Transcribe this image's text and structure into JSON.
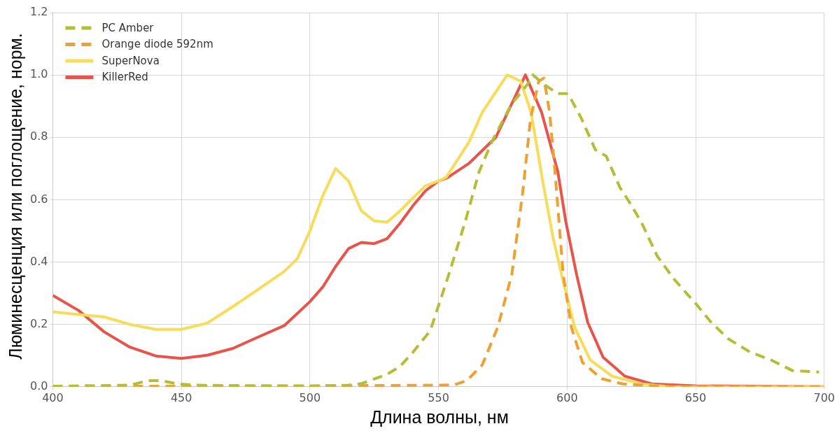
{
  "chart_data": {
    "type": "line",
    "xlabel": "Длина волны, нм",
    "ylabel": "Люминесценция или поглощение, норм.",
    "xlim": [
      400,
      700
    ],
    "xticks": [
      400,
      450,
      500,
      550,
      600,
      650,
      700
    ],
    "ylim": [
      0,
      1.2
    ],
    "yticks": [
      {
        "value": 0,
        "label": "0.0"
      },
      {
        "value": 0.2,
        "label": "0.2"
      },
      {
        "value": 0.4,
        "label": "0.4"
      },
      {
        "value": 0.6,
        "label": "0.6"
      },
      {
        "value": 0.8,
        "label": "0.8"
      },
      {
        "value": 1,
        "label": "1.0"
      },
      {
        "value": 1.2,
        "label": "1.2"
      }
    ],
    "grid": true,
    "legend": "top left",
    "marker": "none",
    "series": [
      {
        "name": "PC Amber",
        "color": "#b5bd34",
        "line_style": "dashed",
        "x": [
          400,
          430,
          437,
          442,
          448,
          455,
          500,
          515,
          520,
          525,
          530,
          535,
          540,
          546.8,
          554,
          560.4,
          565.8,
          571,
          578.3,
          584.6,
          586.7,
          591,
          596.4,
          600.4,
          605.6,
          611,
          615.2,
          620.5,
          624.7,
          629,
          635,
          641.6,
          650,
          656,
          662.5,
          671,
          679.3,
          687.6,
          698
        ],
        "values": [
          0.002,
          0.005,
          0.02,
          0.02,
          0.01,
          0.005,
          0.002,
          0.005,
          0.01,
          0.025,
          0.04,
          0.065,
          0.11,
          0.18,
          0.36,
          0.53,
          0.69,
          0.79,
          0.905,
          0.97,
          1.0,
          0.97,
          0.94,
          0.94,
          0.86,
          0.76,
          0.74,
          0.64,
          0.586,
          0.526,
          0.42,
          0.345,
          0.267,
          0.207,
          0.155,
          0.112,
          0.086,
          0.052,
          0.047
        ]
      },
      {
        "name": "Orange diode 592nm",
        "color": "#f0a030",
        "line_style": "dashed",
        "x": [
          400,
          450,
          500,
          550,
          556,
          561,
          567,
          573,
          578.5,
          582.7,
          585.8,
          589,
          591,
          593.2,
          595.3,
          598.5,
          601.7,
          606,
          613.4,
          621.7,
          640,
          700
        ],
        "values": [
          0.002,
          0.002,
          0.003,
          0.005,
          0.006,
          0.02,
          0.07,
          0.19,
          0.36,
          0.62,
          0.86,
          0.98,
          0.99,
          0.88,
          0.69,
          0.36,
          0.19,
          0.078,
          0.026,
          0.009,
          0,
          0
        ]
      },
      {
        "name": "SuperNova",
        "color": "#f7dc5a",
        "line_style": "solid",
        "x": [
          400,
          410,
          420,
          430,
          440,
          450,
          460,
          470,
          480,
          490,
          495,
          500,
          505,
          510,
          515,
          520,
          525,
          530,
          535,
          540,
          545,
          550,
          553,
          561.8,
          567,
          576.7,
          582,
          586,
          590.3,
          594.5,
          598.7,
          603,
          609,
          617.5,
          629,
          640,
          700
        ],
        "values": [
          0.24,
          0.232,
          0.224,
          0.2,
          0.184,
          0.184,
          0.204,
          0.257,
          0.313,
          0.37,
          0.41,
          0.5,
          0.613,
          0.7,
          0.66,
          0.564,
          0.532,
          0.528,
          0.564,
          0.605,
          0.645,
          0.66,
          0.672,
          0.784,
          0.88,
          1.0,
          0.98,
          0.88,
          0.67,
          0.48,
          0.33,
          0.19,
          0.086,
          0.034,
          0.009,
          0,
          0
        ]
      },
      {
        "name": "KillerRed",
        "color": "#e8534a",
        "line_style": "solid",
        "x": [
          400,
          410,
          420,
          430,
          440,
          450,
          460,
          470,
          480,
          490,
          500,
          505,
          510,
          515,
          520,
          525,
          530,
          535,
          540,
          545,
          550,
          553.4,
          561.8,
          572.3,
          583.8,
          590.1,
          596.4,
          599.5,
          603.7,
          608,
          614,
          622.5,
          633,
          650,
          700
        ],
        "values": [
          0.293,
          0.245,
          0.176,
          0.127,
          0.099,
          0.091,
          0.101,
          0.123,
          0.16,
          0.196,
          0.273,
          0.32,
          0.386,
          0.443,
          0.463,
          0.459,
          0.475,
          0.524,
          0.58,
          0.629,
          0.66,
          0.67,
          0.716,
          0.8,
          1.0,
          0.88,
          0.69,
          0.53,
          0.36,
          0.207,
          0.095,
          0.034,
          0.009,
          0.003,
          0
        ]
      }
    ]
  }
}
